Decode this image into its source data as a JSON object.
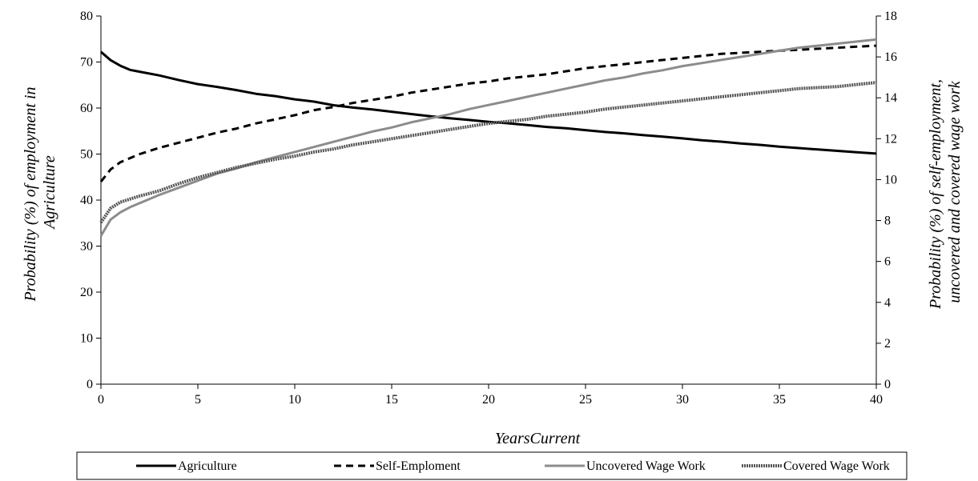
{
  "chart_data": {
    "type": "line",
    "xlabel": "YearsCurrent",
    "ylabel_left": [
      "Probability (%) of employment in",
      "Agriculture"
    ],
    "ylabel_right": [
      "Probability (%) of self-employment,",
      "uncovered and covered wage work"
    ],
    "xlim": [
      0,
      40
    ],
    "ylim_left": [
      0,
      80
    ],
    "ylim_right": [
      0,
      18
    ],
    "x_ticks": [
      0,
      5,
      10,
      15,
      20,
      25,
      30,
      35,
      40
    ],
    "y_left_ticks": [
      0,
      10,
      20,
      30,
      40,
      50,
      60,
      70,
      80
    ],
    "y_right_ticks": [
      0,
      2,
      4,
      6,
      8,
      10,
      12,
      14,
      16,
      18
    ],
    "grid": false,
    "legend_position": "bottom",
    "x": [
      0,
      0.5,
      1,
      1.5,
      2,
      3,
      4,
      5,
      6,
      7,
      8,
      9,
      10,
      11,
      12,
      13,
      14,
      15,
      16,
      17,
      18,
      19,
      20,
      21,
      22,
      23,
      24,
      25,
      26,
      27,
      28,
      29,
      30,
      31,
      32,
      33,
      34,
      35,
      36,
      37,
      38,
      39,
      40
    ],
    "series": [
      {
        "name": "Agriculture",
        "axis": "left",
        "color": "#000000",
        "style": "solid",
        "values": [
          72.2,
          70.4,
          69.2,
          68.3,
          67.9,
          67.1,
          66.1,
          65.2,
          64.6,
          63.9,
          63.1,
          62.6,
          61.9,
          61.4,
          60.6,
          60.1,
          59.7,
          59.2,
          58.7,
          58.2,
          57.8,
          57.4,
          57.0,
          56.7,
          56.3,
          55.9,
          55.6,
          55.2,
          54.8,
          54.5,
          54.1,
          53.8,
          53.4,
          53.0,
          52.7,
          52.3,
          52.0,
          51.6,
          51.3,
          51.0,
          50.7,
          50.4,
          50.1
        ]
      },
      {
        "name": "Self-Emploment",
        "axis": "right",
        "color": "#000000",
        "style": "dashed",
        "values": [
          9.9,
          10.5,
          10.85,
          11.05,
          11.25,
          11.55,
          11.8,
          12.05,
          12.3,
          12.5,
          12.75,
          12.95,
          13.15,
          13.4,
          13.55,
          13.75,
          13.9,
          14.05,
          14.25,
          14.4,
          14.55,
          14.7,
          14.8,
          14.95,
          15.05,
          15.15,
          15.3,
          15.45,
          15.55,
          15.65,
          15.75,
          15.85,
          15.95,
          16.05,
          16.15,
          16.2,
          16.25,
          16.3,
          16.35,
          16.4,
          16.45,
          16.5,
          16.55
        ]
      },
      {
        "name": "Uncovered Wage Work",
        "axis": "right",
        "color": "#8c8c8c",
        "style": "solid",
        "values": [
          7.25,
          8.05,
          8.4,
          8.65,
          8.85,
          9.25,
          9.6,
          9.95,
          10.3,
          10.55,
          10.85,
          11.1,
          11.35,
          11.6,
          11.85,
          12.1,
          12.35,
          12.55,
          12.8,
          13.0,
          13.2,
          13.45,
          13.65,
          13.85,
          14.05,
          14.25,
          14.45,
          14.65,
          14.85,
          15.0,
          15.2,
          15.35,
          15.55,
          15.7,
          15.85,
          16.0,
          16.15,
          16.3,
          16.45,
          16.55,
          16.65,
          16.75,
          16.85
        ]
      },
      {
        "name": "Covered Wage Work",
        "axis": "right",
        "color": "#555555",
        "style": "hatched",
        "values": [
          7.9,
          8.6,
          8.9,
          9.05,
          9.2,
          9.45,
          9.8,
          10.1,
          10.35,
          10.6,
          10.8,
          11.0,
          11.15,
          11.35,
          11.5,
          11.7,
          11.85,
          12.0,
          12.15,
          12.3,
          12.45,
          12.6,
          12.75,
          12.85,
          12.95,
          13.1,
          13.2,
          13.3,
          13.45,
          13.55,
          13.65,
          13.75,
          13.85,
          13.95,
          14.05,
          14.15,
          14.25,
          14.35,
          14.45,
          14.5,
          14.55,
          14.65,
          14.75
        ]
      }
    ]
  }
}
